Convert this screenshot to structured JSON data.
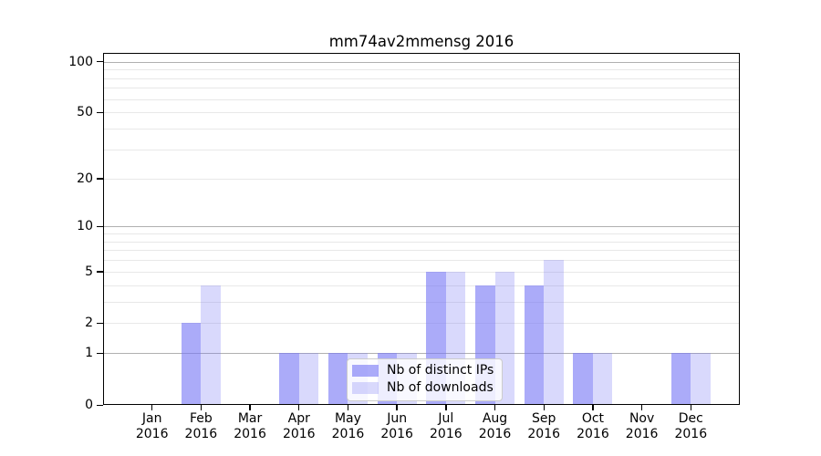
{
  "chart_data": {
    "type": "bar",
    "title": "mm74av2mmensg 2016",
    "months": [
      "Jan",
      "Feb",
      "Mar",
      "Apr",
      "May",
      "Jun",
      "Jul",
      "Aug",
      "Sep",
      "Oct",
      "Nov",
      "Dec"
    ],
    "year_label": "2016",
    "series": [
      {
        "name": "Nb of distinct IPs",
        "color": "rgba(119,119,245,0.62)",
        "values": [
          0,
          2,
          0,
          1,
          1,
          1,
          5,
          4,
          4,
          1,
          0,
          1
        ]
      },
      {
        "name": "Nb of downloads",
        "color": "rgba(119,119,245,0.28)",
        "values": [
          0,
          4,
          0,
          1,
          1,
          1,
          5,
          5,
          6,
          1,
          0,
          1
        ]
      }
    ],
    "y_axis": {
      "tick_values": [
        0,
        1,
        2,
        5,
        10,
        20,
        50,
        100
      ],
      "scale": "log10(1+value)",
      "range": [
        0,
        112
      ]
    },
    "grid": {
      "major_lines": [
        1,
        10,
        100
      ],
      "minor_lines": [
        2,
        3,
        4,
        5,
        6,
        7,
        8,
        9,
        20,
        30,
        40,
        50,
        60,
        70,
        80,
        90
      ],
      "major_color": "#b0b0b0",
      "minor_color": "#e8e8e8"
    },
    "legend": {
      "position": "lower center"
    }
  }
}
